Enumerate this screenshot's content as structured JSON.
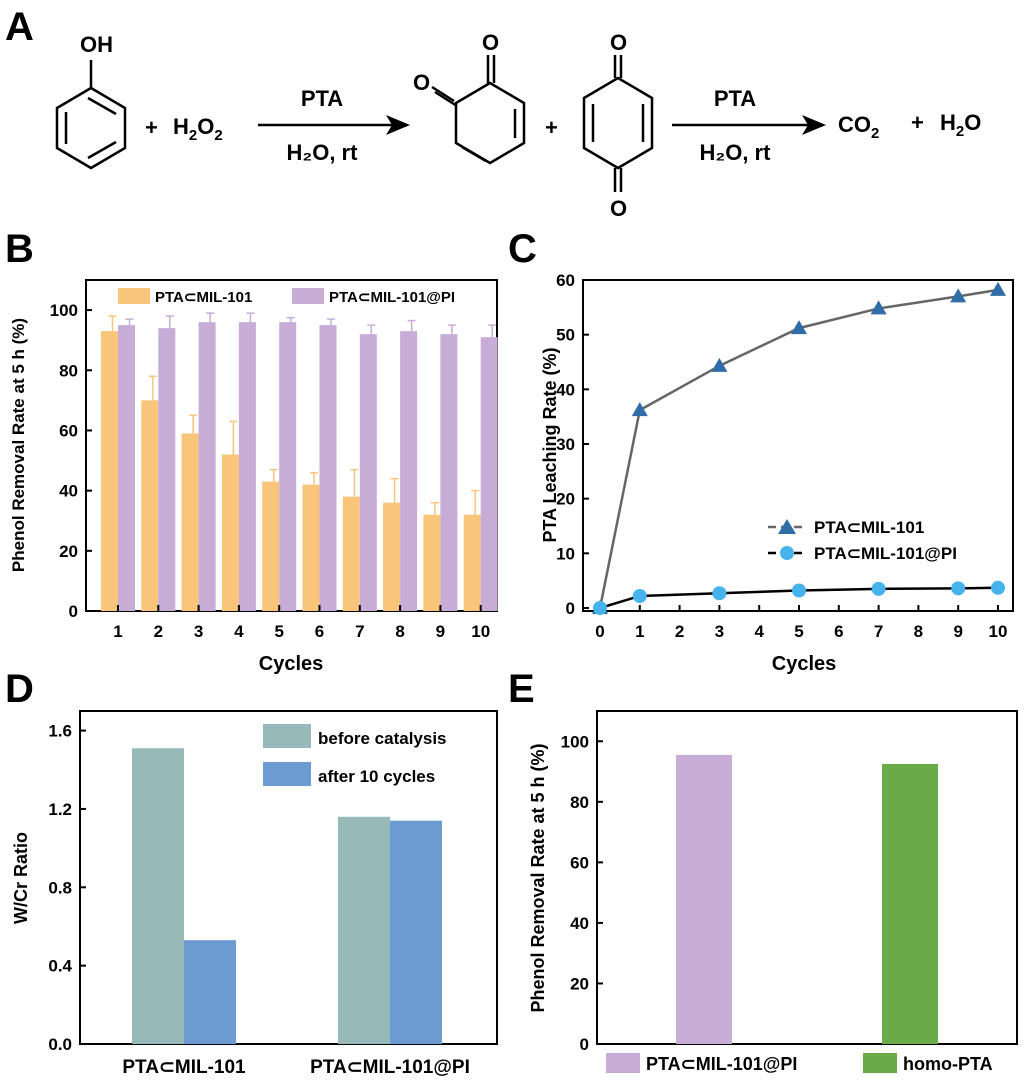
{
  "panel_labels": [
    "A",
    "B",
    "C",
    "D",
    "E"
  ],
  "reaction": {
    "phenol_oh": "OH",
    "plus": "+",
    "h2o2_main": "H",
    "h2o2_sub1": "2",
    "h2o2_o": "O",
    "h2o2_sub2": "2",
    "arrow1_top": "PTA",
    "arrow1_bottom": "H₂O, rt",
    "ortho_o1": "O",
    "ortho_o2": "O",
    "para_o1": "O",
    "para_o2": "O",
    "arrow2_top": "PTA",
    "arrow2_bottom": "H₂O, rt",
    "co2_main": "CO",
    "co2_sub": "2",
    "h2o_main": "H",
    "h2o_sub": "2",
    "h2o_o": "O"
  },
  "colors": {
    "orange": "#F9C57A",
    "lavender": "#C7ADD6",
    "teal_gray": "#97B9B8",
    "blue": "#6C9BD2",
    "green": "#6AAB48",
    "tri_blue": "#2E6DA8",
    "dot_blue": "#46B3EC"
  },
  "chart_data": [
    {
      "panel": "B",
      "type": "bar",
      "xlabel": "Cycles",
      "ylabel": "Phenol Removal Rate at 5 h (%)",
      "ylim": [
        0,
        110
      ],
      "yticks": [
        0,
        20,
        40,
        60,
        80,
        100
      ],
      "categories": [
        "1",
        "2",
        "3",
        "4",
        "5",
        "6",
        "7",
        "8",
        "9",
        "10"
      ],
      "legend_position": "top",
      "series": [
        {
          "name": "PTA⊂MIL-101",
          "values": [
            93,
            70,
            59,
            52,
            43,
            42,
            38,
            36,
            32,
            32
          ],
          "errors": [
            5,
            8,
            6,
            11,
            4,
            4,
            9,
            8,
            4,
            8
          ]
        },
        {
          "name": "PTA⊂MIL-101@PI",
          "values": [
            95,
            94,
            96,
            96,
            96,
            95,
            92,
            93,
            92,
            91
          ],
          "errors": [
            2,
            4,
            3,
            3,
            1.5,
            2,
            3,
            3.5,
            3,
            4
          ]
        }
      ]
    },
    {
      "panel": "C",
      "type": "line",
      "xlabel": "Cycles",
      "ylabel": "PTA Leaching  Rate (%)",
      "xlim": [
        0,
        10
      ],
      "ylim": [
        0,
        60
      ],
      "xticks": [
        0,
        1,
        2,
        3,
        4,
        5,
        6,
        7,
        8,
        9,
        10
      ],
      "yticks": [
        0,
        10,
        20,
        30,
        40,
        50,
        60
      ],
      "legend_position": "bottom-right",
      "series": [
        {
          "name": "PTA⊂MIL-101",
          "marker": "triangle",
          "x": [
            0,
            1,
            3,
            5,
            7,
            9,
            10
          ],
          "y": [
            0,
            36.2,
            44.3,
            51.2,
            54.8,
            57.0,
            58.2
          ]
        },
        {
          "name": "PTA⊂MIL-101@PI",
          "marker": "circle",
          "x": [
            0,
            1,
            3,
            5,
            7,
            9,
            10
          ],
          "y": [
            0,
            2.2,
            2.7,
            3.2,
            3.5,
            3.6,
            3.7
          ]
        }
      ]
    },
    {
      "panel": "D",
      "type": "bar",
      "xlabel": "",
      "ylabel": "W/Cr Ratio",
      "ylim": [
        0,
        1.7
      ],
      "yticks": [
        "0.0",
        "0.4",
        "0.8",
        "1.2",
        "1.6"
      ],
      "categories": [
        "PTA⊂MIL-101",
        "PTA⊂MIL-101@PI"
      ],
      "legend_position": "top-right",
      "series": [
        {
          "name": "before catalysis",
          "values": [
            1.51,
            1.16
          ]
        },
        {
          "name": "after 10 cycles",
          "values": [
            0.53,
            1.14
          ]
        }
      ]
    },
    {
      "panel": "E",
      "type": "bar",
      "xlabel": "",
      "ylabel": "Phenol Removal Rate at 5 h (%)",
      "ylim": [
        0,
        110
      ],
      "yticks": [
        0,
        20,
        40,
        60,
        80,
        100
      ],
      "categories": [
        "PTA⊂MIL-101@PI",
        "homo-PTA"
      ],
      "legend_position": "bottom",
      "values": [
        95.5,
        92.5
      ]
    }
  ]
}
